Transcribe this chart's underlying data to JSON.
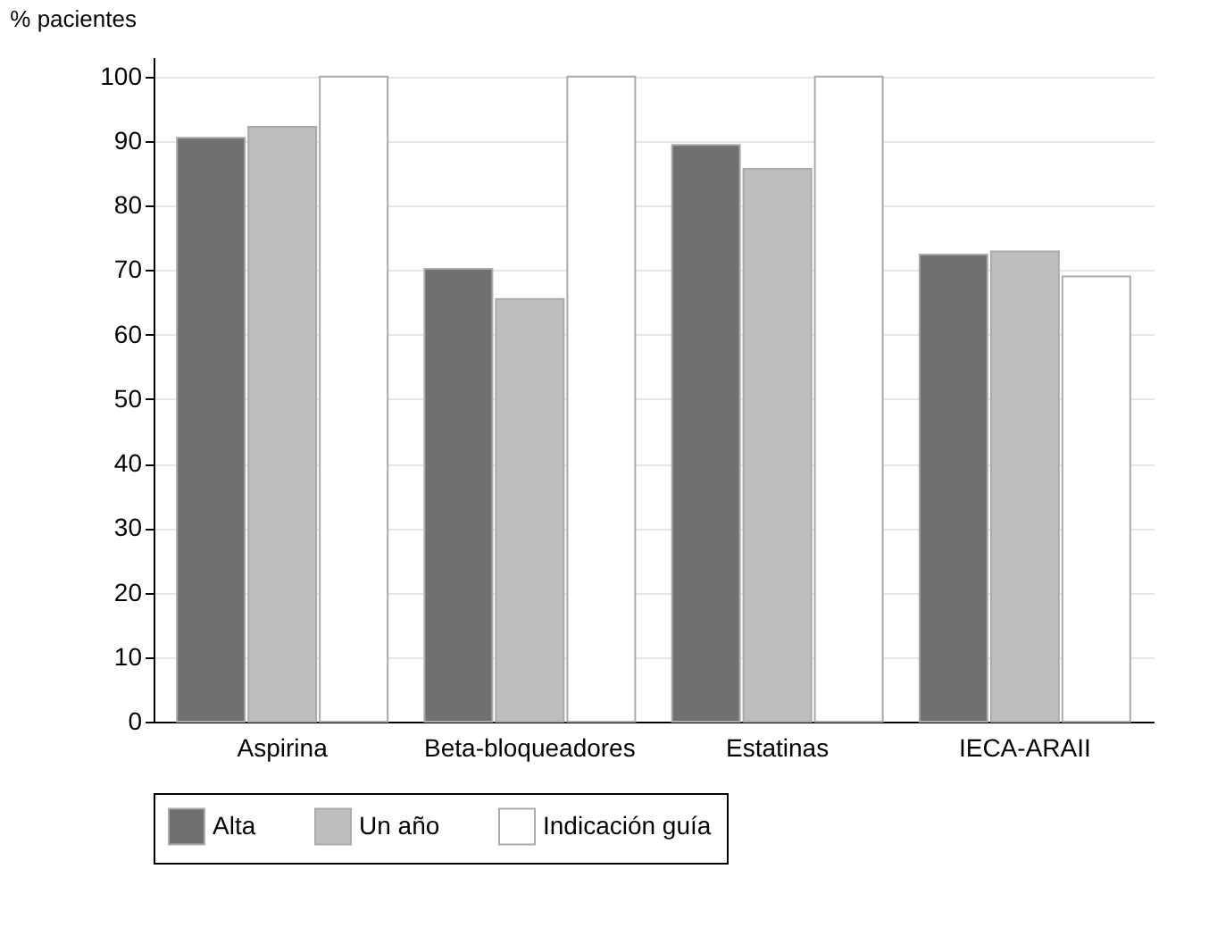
{
  "chart_data": {
    "type": "bar",
    "ylabel": "% pacientes",
    "categories": [
      "Aspirina",
      "Beta-bloqueadores",
      "Estatinas",
      "IECA-ARAII"
    ],
    "series": [
      {
        "name": "Alta",
        "color": "#707070",
        "values": [
          90.5,
          70.2,
          89.4,
          72.4
        ]
      },
      {
        "name": "Un año",
        "color": "#bebebe",
        "values": [
          92.2,
          65.5,
          85.7,
          72.9
        ]
      },
      {
        "name": "Indicación guía",
        "color": "#ffffff",
        "values": [
          100,
          100,
          100,
          69.0
        ]
      }
    ],
    "ylim": [
      0,
      103
    ],
    "yticks": [
      0,
      10,
      20,
      30,
      40,
      50,
      60,
      70,
      80,
      90,
      100
    ],
    "grid": "y",
    "legend": "bottom"
  }
}
